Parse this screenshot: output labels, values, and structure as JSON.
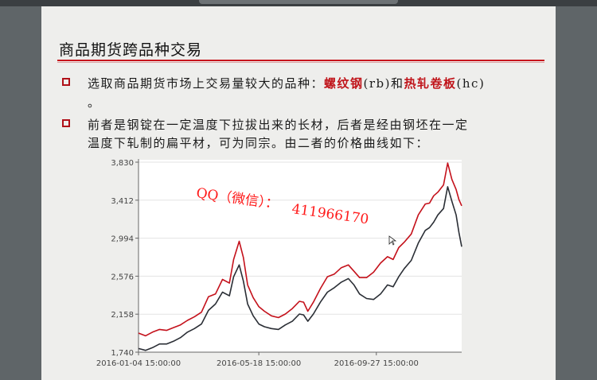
{
  "slide": {
    "title": "商品期货跨品种交易",
    "bullet1": {
      "prefix": "选取商品期货市场上交易量较大的品种：",
      "rb_name": "螺纹钢",
      "rb_code": "(rb)和",
      "hc_name": "热轧卷板",
      "hc_code": "(hc)",
      "tail": "。"
    },
    "bullet2": {
      "line1": "前者是钢锭在一定温度下拉拔出来的长材，后者是经由钢坯在一定",
      "line2": "温度下轧制的扁平材，可为同宗。由二者的价格曲线如下："
    },
    "watermark_line1": "QQ（微信）：",
    "watermark_line2": "411966170"
  },
  "colors": {
    "accent_red": "#c8141c",
    "series_rb": "#c4111b",
    "series_hc": "#2a2e35"
  },
  "chart_data": {
    "type": "line",
    "y_ticks": [
      "3,830",
      "3,412",
      "2,994",
      "2,576",
      "2,158",
      "1,740"
    ],
    "x_ticks": [
      "2016-01-04 15:00:00",
      "2016-05-18 15:00:00",
      "2016-09-27 15:00:00"
    ],
    "ylim": [
      1740,
      3830
    ],
    "n_days": 231,
    "series": [
      {
        "key": "rb",
        "color": "#c4111b",
        "points": [
          [
            0,
            1950
          ],
          [
            5,
            1920
          ],
          [
            10,
            1960
          ],
          [
            15,
            1990
          ],
          [
            20,
            1980
          ],
          [
            25,
            2010
          ],
          [
            30,
            2040
          ],
          [
            35,
            2090
          ],
          [
            40,
            2130
          ],
          [
            45,
            2180
          ],
          [
            50,
            2350
          ],
          [
            55,
            2380
          ],
          [
            60,
            2540
          ],
          [
            65,
            2500
          ],
          [
            68,
            2760
          ],
          [
            72,
            2960
          ],
          [
            75,
            2780
          ],
          [
            78,
            2480
          ],
          [
            82,
            2340
          ],
          [
            86,
            2240
          ],
          [
            90,
            2190
          ],
          [
            95,
            2140
          ],
          [
            100,
            2120
          ],
          [
            105,
            2160
          ],
          [
            110,
            2220
          ],
          [
            115,
            2300
          ],
          [
            118,
            2290
          ],
          [
            121,
            2190
          ],
          [
            125,
            2290
          ],
          [
            130,
            2440
          ],
          [
            135,
            2570
          ],
          [
            140,
            2600
          ],
          [
            145,
            2670
          ],
          [
            150,
            2700
          ],
          [
            154,
            2630
          ],
          [
            158,
            2560
          ],
          [
            163,
            2560
          ],
          [
            168,
            2620
          ],
          [
            173,
            2720
          ],
          [
            178,
            2790
          ],
          [
            182,
            2760
          ],
          [
            186,
            2890
          ],
          [
            190,
            2950
          ],
          [
            195,
            3040
          ],
          [
            200,
            3250
          ],
          [
            205,
            3370
          ],
          [
            208,
            3380
          ],
          [
            211,
            3460
          ],
          [
            214,
            3500
          ],
          [
            218,
            3580
          ],
          [
            221,
            3820
          ],
          [
            224,
            3640
          ],
          [
            227,
            3530
          ],
          [
            229,
            3420
          ],
          [
            231,
            3350
          ]
        ]
      },
      {
        "key": "hc",
        "color": "#2a2e35",
        "points": [
          [
            0,
            1780
          ],
          [
            5,
            1760
          ],
          [
            10,
            1790
          ],
          [
            15,
            1830
          ],
          [
            20,
            1830
          ],
          [
            25,
            1860
          ],
          [
            30,
            1900
          ],
          [
            35,
            1960
          ],
          [
            40,
            2000
          ],
          [
            45,
            2050
          ],
          [
            50,
            2200
          ],
          [
            55,
            2270
          ],
          [
            60,
            2400
          ],
          [
            65,
            2360
          ],
          [
            68,
            2570
          ],
          [
            72,
            2700
          ],
          [
            75,
            2520
          ],
          [
            78,
            2270
          ],
          [
            82,
            2140
          ],
          [
            86,
            2050
          ],
          [
            90,
            2020
          ],
          [
            95,
            2000
          ],
          [
            100,
            1990
          ],
          [
            105,
            2040
          ],
          [
            110,
            2080
          ],
          [
            115,
            2160
          ],
          [
            118,
            2150
          ],
          [
            121,
            2080
          ],
          [
            125,
            2160
          ],
          [
            130,
            2290
          ],
          [
            135,
            2400
          ],
          [
            140,
            2450
          ],
          [
            145,
            2510
          ],
          [
            150,
            2550
          ],
          [
            154,
            2480
          ],
          [
            158,
            2380
          ],
          [
            163,
            2330
          ],
          [
            168,
            2320
          ],
          [
            173,
            2380
          ],
          [
            178,
            2480
          ],
          [
            182,
            2460
          ],
          [
            186,
            2570
          ],
          [
            190,
            2660
          ],
          [
            195,
            2750
          ],
          [
            200,
            2940
          ],
          [
            205,
            3080
          ],
          [
            208,
            3110
          ],
          [
            211,
            3170
          ],
          [
            214,
            3250
          ],
          [
            218,
            3320
          ],
          [
            221,
            3560
          ],
          [
            224,
            3400
          ],
          [
            227,
            3250
          ],
          [
            229,
            3060
          ],
          [
            231,
            2900
          ]
        ]
      }
    ]
  }
}
